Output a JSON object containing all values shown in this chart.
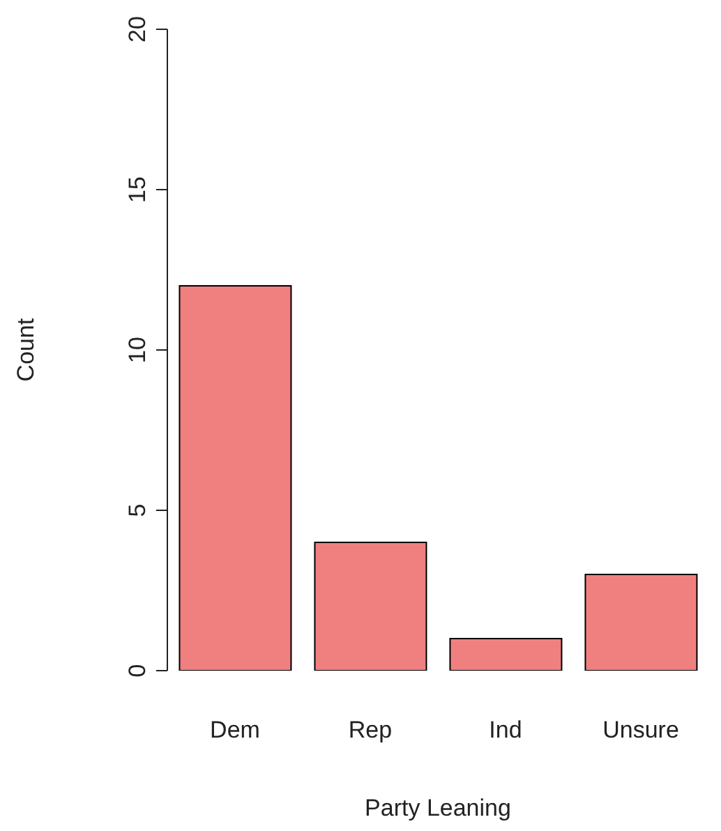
{
  "chart_data": {
    "type": "bar",
    "xlabel": "Party Leaning",
    "ylabel": "Count",
    "categories": [
      "Dem",
      "Rep",
      "Ind",
      "Unsure"
    ],
    "values": [
      12,
      4,
      1,
      3
    ],
    "color": "#f08080",
    "ylim": [
      0,
      20
    ],
    "yticks": [
      0,
      5,
      10,
      15,
      20
    ]
  }
}
